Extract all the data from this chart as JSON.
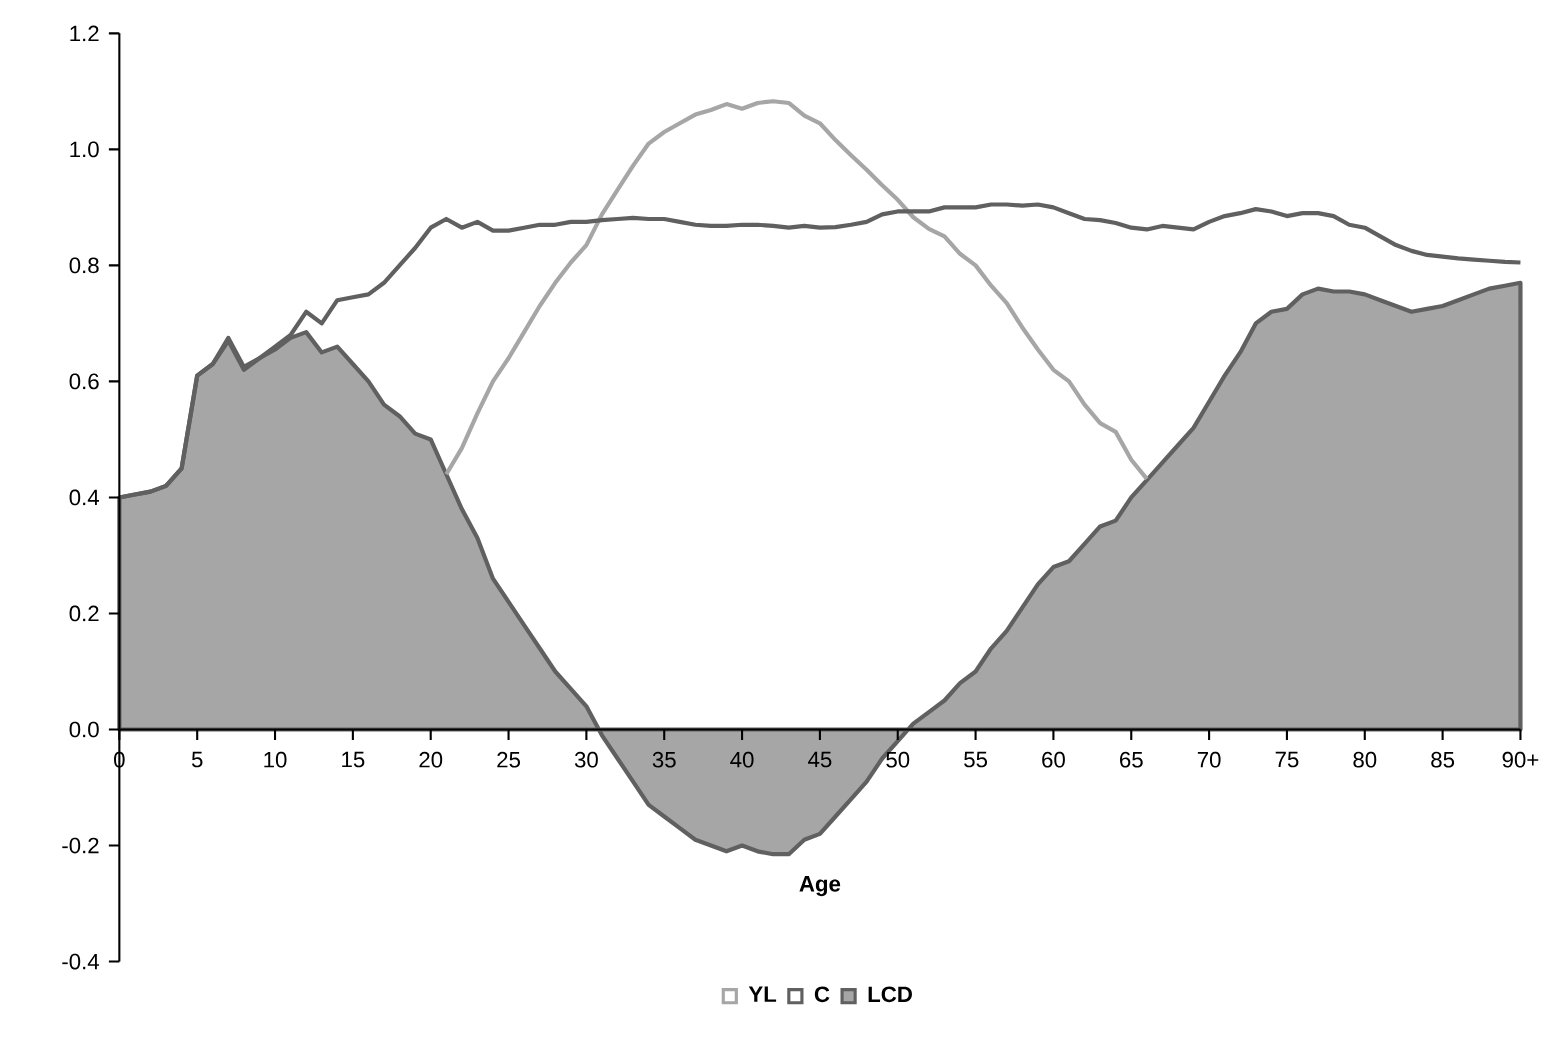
{
  "chart_data": {
    "type": "line",
    "xlabel": "Age",
    "x": [
      0,
      1,
      2,
      3,
      4,
      5,
      6,
      7,
      8,
      9,
      10,
      11,
      12,
      13,
      14,
      15,
      16,
      17,
      18,
      19,
      20,
      21,
      22,
      23,
      24,
      25,
      26,
      27,
      28,
      29,
      30,
      31,
      32,
      33,
      34,
      35,
      36,
      37,
      38,
      39,
      40,
      41,
      42,
      43,
      44,
      45,
      46,
      47,
      48,
      49,
      50,
      51,
      52,
      53,
      54,
      55,
      56,
      57,
      58,
      59,
      60,
      61,
      62,
      63,
      64,
      65,
      66,
      67,
      68,
      69,
      70,
      71,
      72,
      73,
      74,
      75,
      76,
      77,
      78,
      79,
      80,
      81,
      82,
      83,
      84,
      85,
      86,
      87,
      88,
      89,
      90
    ],
    "series": [
      {
        "name": "YL",
        "type": "line",
        "color": "#a6a6a6",
        "values": [
          null,
          null,
          null,
          null,
          null,
          null,
          null,
          null,
          null,
          null,
          null,
          null,
          null,
          null,
          null,
          null,
          null,
          null,
          null,
          null,
          null,
          0.44,
          0.485,
          0.545,
          0.6,
          0.64,
          0.685,
          0.73,
          0.77,
          0.805,
          0.835,
          0.888,
          0.93,
          0.972,
          1.01,
          1.03,
          1.045,
          1.06,
          1.068,
          1.078,
          1.07,
          1.08,
          1.083,
          1.08,
          1.058,
          1.045,
          1.016,
          0.99,
          0.965,
          0.938,
          0.913,
          0.883,
          0.863,
          0.85,
          0.82,
          0.8,
          0.765,
          0.735,
          0.693,
          0.655,
          0.62,
          0.6,
          0.56,
          0.528,
          0.513,
          0.465,
          0.432,
          null,
          null,
          null,
          null,
          null,
          null,
          null,
          null,
          null,
          null,
          null,
          null,
          null,
          null,
          null,
          null,
          null,
          null,
          null,
          null,
          null,
          null,
          null,
          null
        ]
      },
      {
        "name": "C",
        "type": "line",
        "color": "#606060",
        "values": [
          0.4,
          0.405,
          0.41,
          0.42,
          0.45,
          0.61,
          0.63,
          0.67,
          0.62,
          0.64,
          0.66,
          0.68,
          0.72,
          0.7,
          0.74,
          0.745,
          0.75,
          0.77,
          0.8,
          0.83,
          0.865,
          0.88,
          0.865,
          0.875,
          0.86,
          0.86,
          0.865,
          0.87,
          0.87,
          0.875,
          0.875,
          0.878,
          0.88,
          0.882,
          0.88,
          0.88,
          0.875,
          0.87,
          0.868,
          0.868,
          0.87,
          0.87,
          0.868,
          0.865,
          0.868,
          0.865,
          0.866,
          0.87,
          0.875,
          0.888,
          0.893,
          0.893,
          0.893,
          0.9,
          0.9,
          0.9,
          0.905,
          0.905,
          0.903,
          0.905,
          0.9,
          0.89,
          0.88,
          0.878,
          0.873,
          0.865,
          0.862,
          0.868,
          0.865,
          0.862,
          0.875,
          0.885,
          0.89,
          0.897,
          0.893,
          0.885,
          0.89,
          0.89,
          0.885,
          0.87,
          0.865,
          0.85,
          0.835,
          0.825,
          0.818,
          0.815,
          0.812,
          0.81,
          0.808,
          0.806,
          0.805
        ]
      },
      {
        "name": "LCD",
        "type": "area",
        "color": "#a6a6a6",
        "values": [
          0.4,
          0.405,
          0.41,
          0.42,
          0.45,
          0.61,
          0.63,
          0.675,
          0.625,
          0.64,
          0.655,
          0.675,
          0.685,
          0.65,
          0.66,
          0.63,
          0.6,
          0.56,
          0.54,
          0.51,
          0.5,
          0.44,
          0.38,
          0.33,
          0.26,
          0.22,
          0.18,
          0.14,
          0.1,
          0.07,
          0.04,
          -0.01,
          -0.05,
          -0.09,
          -0.13,
          -0.15,
          -0.17,
          -0.19,
          -0.2,
          -0.21,
          -0.2,
          -0.21,
          -0.215,
          -0.215,
          -0.19,
          -0.18,
          -0.15,
          -0.12,
          -0.09,
          -0.05,
          -0.02,
          0.01,
          0.03,
          0.05,
          0.08,
          0.1,
          0.14,
          0.17,
          0.21,
          0.25,
          0.28,
          0.29,
          0.32,
          0.35,
          0.36,
          0.4,
          0.43,
          0.46,
          0.49,
          0.52,
          0.565,
          0.61,
          0.65,
          0.7,
          0.72,
          0.725,
          0.75,
          0.76,
          0.755,
          0.755,
          0.75,
          0.74,
          0.73,
          0.72,
          0.725,
          0.73,
          0.74,
          0.75,
          0.76,
          0.765,
          0.77
        ]
      }
    ],
    "xlim": [
      0,
      90
    ],
    "xticks": [
      0,
      5,
      10,
      15,
      20,
      25,
      30,
      35,
      40,
      45,
      50,
      55,
      60,
      65,
      70,
      75,
      80,
      85,
      {
        "value": 90,
        "label": "90+"
      }
    ],
    "ylim": [
      -0.4,
      1.2
    ],
    "yticks": [
      -0.4,
      -0.2,
      {
        "value": 0,
        "label": "0.0"
      },
      0.2,
      0.4,
      0.6,
      0.8,
      {
        "value": 1,
        "label": "1.0"
      },
      1.2
    ],
    "grid": false,
    "legend": "bottom"
  }
}
